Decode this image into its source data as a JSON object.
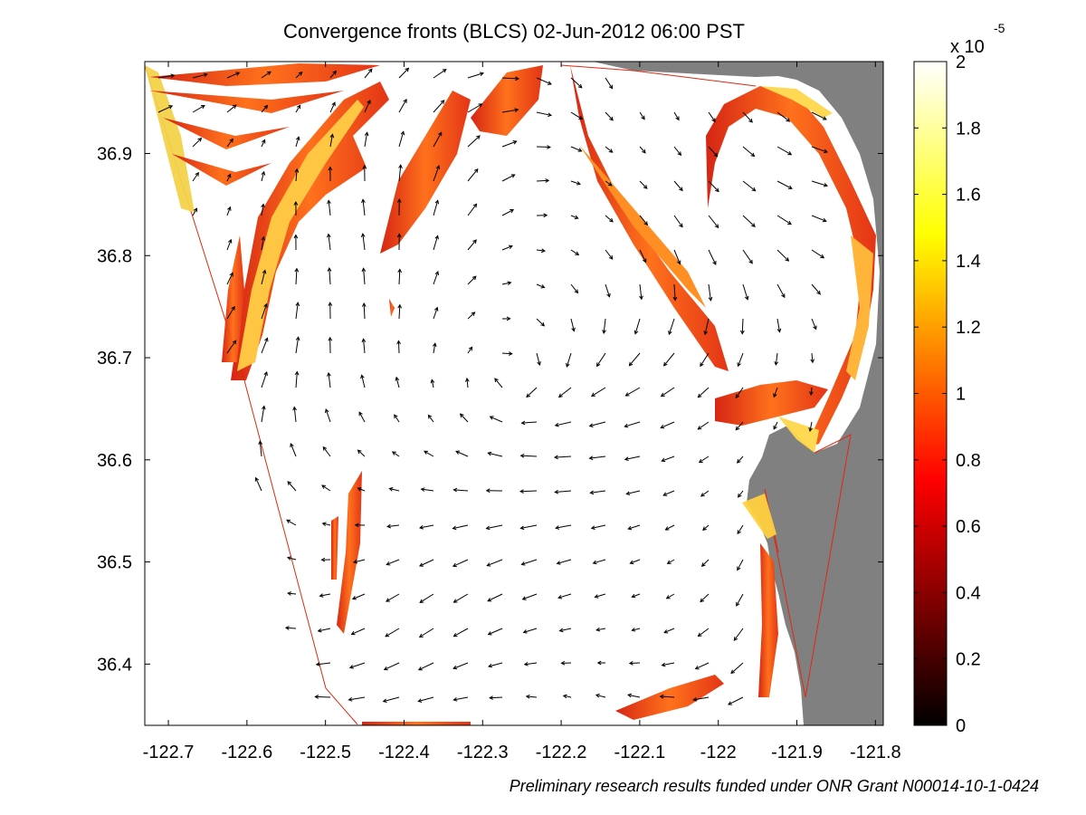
{
  "chart_data": {
    "type": "heatmap",
    "title": "Convergence fronts (BLCS) 02-Jun-2012 06:00 PST",
    "xlabel": "",
    "ylabel": "",
    "x_ticks": [
      -122.7,
      -122.6,
      -122.5,
      -122.4,
      -122.3,
      -122.2,
      -122.1,
      -122.0,
      -121.9,
      -121.8
    ],
    "x_tick_labels": [
      "-122.7",
      "-122.6",
      "-122.5",
      "-122.4",
      "-122.3",
      "-122.2",
      "-122.1",
      "-122",
      "-121.9",
      "-121.8"
    ],
    "xlim": [
      -122.73,
      -121.79
    ],
    "y_ticks": [
      36.4,
      36.5,
      36.6,
      36.7,
      36.8,
      36.9
    ],
    "y_tick_labels": [
      "36.4",
      "36.5",
      "36.6",
      "36.7",
      "36.8",
      "36.9"
    ],
    "ylim": [
      36.34,
      36.99
    ],
    "grid": false,
    "colorbar": {
      "colormap": "hot",
      "min": 0,
      "max": 2,
      "ticks": [
        0,
        0.2,
        0.4,
        0.6,
        0.8,
        1,
        1.2,
        1.4,
        1.6,
        1.8,
        2
      ],
      "tick_labels": [
        "0",
        "0.2",
        "0.4",
        "0.6",
        "0.8",
        "1",
        "1.2",
        "1.4",
        "1.6",
        "1.8",
        "2"
      ],
      "scale_label": "x 10",
      "scale_exponent": "-5"
    },
    "land_color": "#808080",
    "front_color": "#e8280a",
    "vector_field": "surface current arrows (black)"
  },
  "credit": "Preliminary research results funded under ONR Grant N00014-10-1-0424"
}
